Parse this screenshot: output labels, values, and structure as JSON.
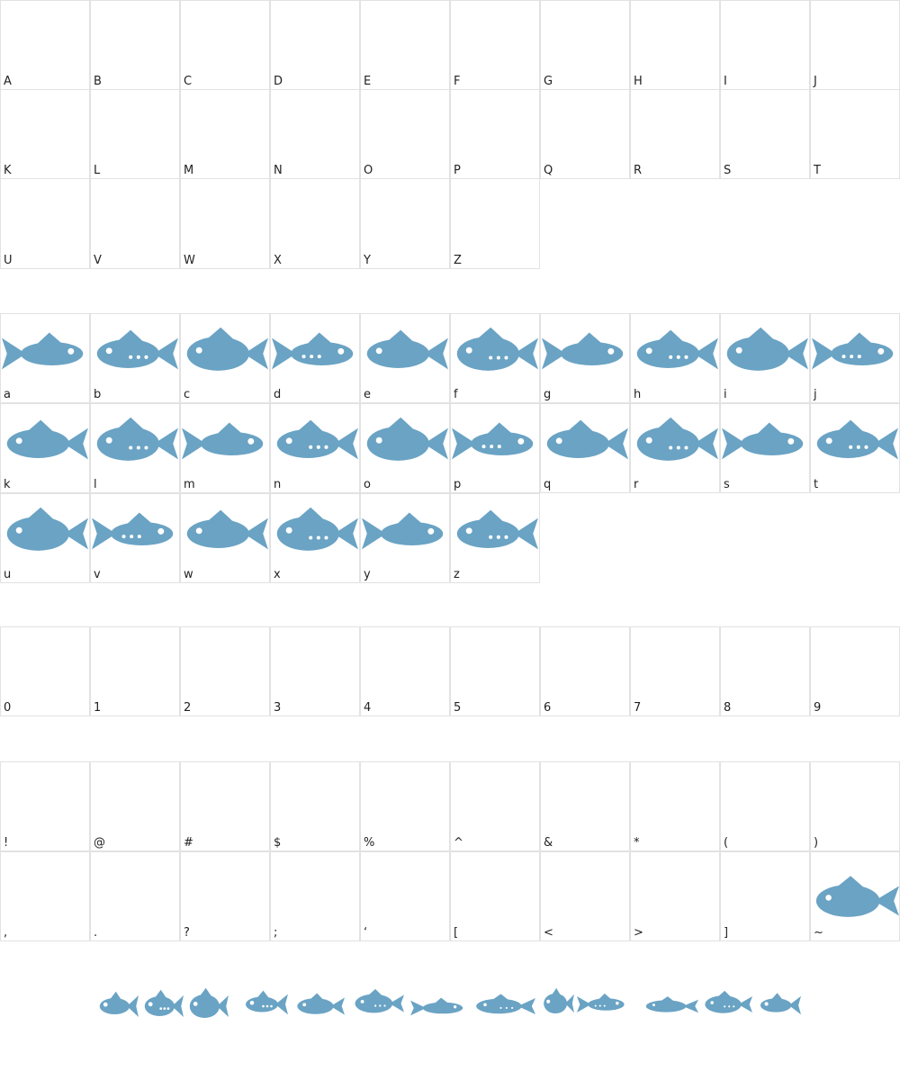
{
  "sections": [
    {
      "glyphs": [
        "A",
        "B",
        "C",
        "D",
        "E",
        "F",
        "G",
        "H",
        "I",
        "J",
        "K",
        "L",
        "M",
        "N",
        "O",
        "P",
        "Q",
        "R",
        "S",
        "T",
        "U",
        "V",
        "W",
        "X",
        "Y",
        "Z"
      ]
    },
    {
      "glyphs": [
        "a",
        "b",
        "c",
        "d",
        "e",
        "f",
        "g",
        "h",
        "i",
        "j",
        "k",
        "l",
        "m",
        "n",
        "o",
        "p",
        "q",
        "r",
        "s",
        "t",
        "u",
        "v",
        "w",
        "x",
        "y",
        "z"
      ]
    },
    {
      "glyphs": [
        "0",
        "1",
        "2",
        "3",
        "4",
        "5",
        "6",
        "7",
        "8",
        "9"
      ]
    },
    {
      "glyphs": [
        "!",
        "@",
        "#",
        "$",
        "%",
        "^",
        "&",
        "*",
        "(",
        ")",
        ",",
        ".",
        "?",
        ";",
        "‘",
        "[",
        "<",
        ">",
        "]",
        "~"
      ]
    }
  ]
}
